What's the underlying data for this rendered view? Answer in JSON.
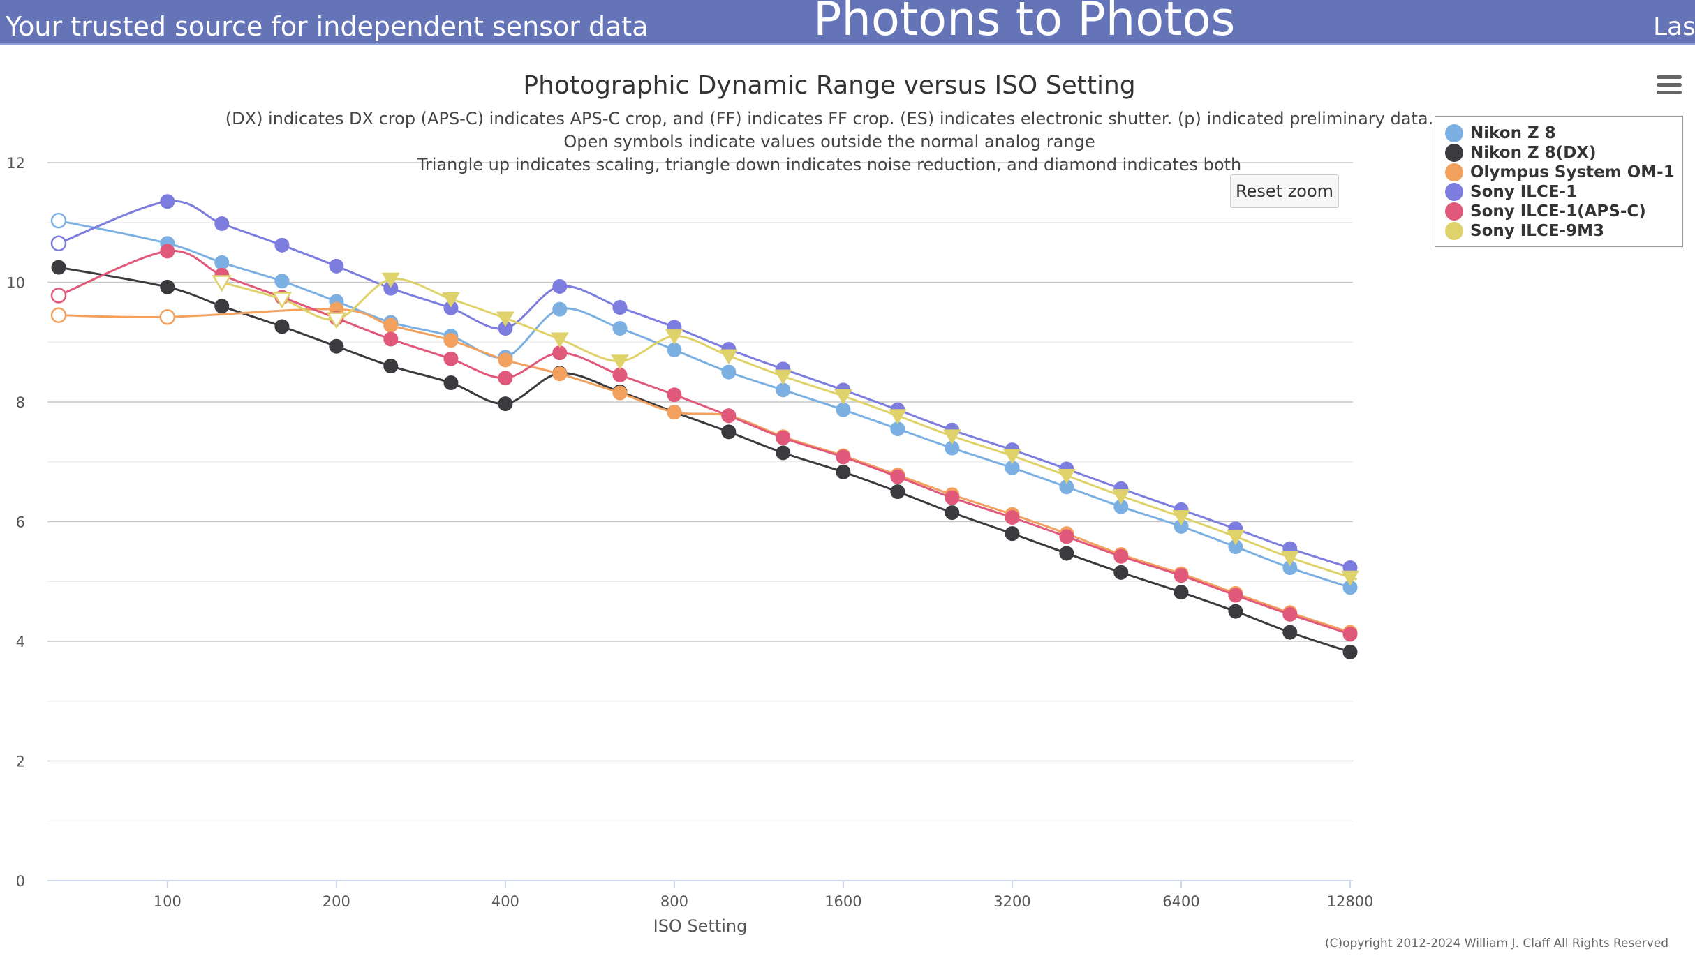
{
  "header": {
    "tagline": "Your trusted source for independent sensor data",
    "site_title": "Photons to Photos",
    "right_text": "Last"
  },
  "reset_zoom_label": "Reset zoom",
  "copyright": "(C)opyright 2012-2024 William J. Claff All Rights Reserved",
  "colors": {
    "banner": "#6574b7",
    "gridline": "#cccccc"
  },
  "chart_data": {
    "type": "line",
    "title": "Photographic Dynamic Range versus ISO Setting",
    "subtitle": [
      "(DX) indicates DX crop (APS-C) indicates APS-C crop, and (FF) indicates FF crop. (ES) indicates electronic shutter. (p) indicated preliminary data.",
      "Open symbols indicate values outside the normal analog range",
      "Triangle up indicates scaling, triangle down indicates noise reduction, and diamond indicates both"
    ],
    "xlabel": "ISO Setting",
    "ylabel": "",
    "x_scale": "log2",
    "xlim": [
      64,
      12800
    ],
    "ylim": [
      0,
      12
    ],
    "x_ticks": [
      100,
      200,
      400,
      800,
      1600,
      3200,
      6400,
      12800
    ],
    "y_ticks": [
      0,
      2,
      4,
      6,
      8,
      10,
      12
    ],
    "grid": true,
    "legend_position": "top-right",
    "series": [
      {
        "name": "Nikon Z 8",
        "color": "#7cb0e2",
        "marker": "circle",
        "x": [
          64,
          100,
          125,
          160,
          200,
          250,
          320,
          400,
          500,
          640,
          800,
          1000,
          1250,
          1600,
          2000,
          2500,
          3200,
          4000,
          5000,
          6400,
          8000,
          10000,
          12800
        ],
        "values": [
          11.03,
          10.65,
          10.33,
          10.02,
          9.68,
          9.33,
          9.1,
          8.75,
          9.55,
          9.23,
          8.87,
          8.5,
          8.2,
          7.87,
          7.55,
          7.23,
          6.9,
          6.58,
          6.25,
          5.92,
          5.58,
          5.23,
          4.9
        ],
        "open": [
          true,
          false,
          false,
          false,
          false,
          false,
          false,
          false,
          false,
          false,
          false,
          false,
          false,
          false,
          false,
          false,
          false,
          false,
          false,
          false,
          false,
          false,
          false
        ]
      },
      {
        "name": "Nikon Z 8(DX)",
        "color": "#3a3a3f",
        "marker": "circle",
        "x": [
          64,
          100,
          125,
          160,
          200,
          250,
          320,
          400,
          500,
          640,
          800,
          1000,
          1250,
          1600,
          2000,
          2500,
          3200,
          4000,
          5000,
          6400,
          8000,
          10000,
          12800
        ],
        "values": [
          10.25,
          9.92,
          9.6,
          9.26,
          8.93,
          8.6,
          8.32,
          7.97,
          8.48,
          8.17,
          7.83,
          7.5,
          7.15,
          6.83,
          6.5,
          6.15,
          5.8,
          5.47,
          5.15,
          4.82,
          4.5,
          4.15,
          3.82
        ],
        "open": [
          false,
          false,
          false,
          false,
          false,
          false,
          false,
          false,
          false,
          false,
          false,
          false,
          false,
          false,
          false,
          false,
          false,
          false,
          false,
          false,
          false,
          false,
          false
        ]
      },
      {
        "name": "Olympus System OM-1",
        "color": "#f2a15e",
        "marker": "circle",
        "x": [
          64,
          100,
          200,
          250,
          320,
          400,
          500,
          640,
          800,
          1000,
          1250,
          1600,
          2000,
          2500,
          3200,
          4000,
          5000,
          6400,
          8000,
          10000,
          12800
        ],
        "values": [
          9.45,
          9.42,
          9.55,
          9.28,
          9.03,
          8.7,
          8.47,
          8.15,
          7.83,
          7.77,
          7.42,
          7.1,
          6.78,
          6.45,
          6.12,
          5.8,
          5.45,
          5.13,
          4.8,
          4.48,
          4.15
        ],
        "open": [
          true,
          true,
          false,
          false,
          false,
          false,
          false,
          false,
          false,
          false,
          false,
          false,
          false,
          false,
          false,
          false,
          false,
          false,
          false,
          false,
          false
        ]
      },
      {
        "name": "Sony ILCE-1",
        "color": "#7d7ddf",
        "marker": "circle",
        "x": [
          64,
          100,
          125,
          160,
          200,
          250,
          320,
          400,
          500,
          640,
          800,
          1000,
          1250,
          1600,
          2000,
          2500,
          3200,
          4000,
          5000,
          6400,
          8000,
          10000,
          12800
        ],
        "values": [
          10.65,
          11.35,
          10.98,
          10.62,
          10.27,
          9.9,
          9.57,
          9.23,
          9.93,
          9.58,
          9.25,
          8.88,
          8.55,
          8.2,
          7.87,
          7.53,
          7.2,
          6.88,
          6.55,
          6.2,
          5.88,
          5.55,
          5.23
        ],
        "open": [
          true,
          false,
          false,
          false,
          false,
          false,
          false,
          false,
          false,
          false,
          false,
          false,
          false,
          false,
          false,
          false,
          false,
          false,
          false,
          false,
          false,
          false,
          false
        ]
      },
      {
        "name": "Sony ILCE-1(APS-C)",
        "color": "#e0587a",
        "marker": "circle",
        "x": [
          64,
          100,
          125,
          160,
          200,
          250,
          320,
          400,
          500,
          640,
          800,
          1000,
          1250,
          1600,
          2000,
          2500,
          3200,
          4000,
          5000,
          6400,
          8000,
          10000,
          12800
        ],
        "values": [
          9.78,
          10.52,
          10.12,
          9.75,
          9.4,
          9.05,
          8.72,
          8.4,
          8.82,
          8.45,
          8.12,
          7.77,
          7.4,
          7.08,
          6.75,
          6.4,
          6.07,
          5.75,
          5.42,
          5.1,
          4.77,
          4.45,
          4.12
        ],
        "open": [
          true,
          false,
          false,
          false,
          false,
          false,
          false,
          false,
          false,
          false,
          false,
          false,
          false,
          false,
          false,
          false,
          false,
          false,
          false,
          false,
          false,
          false,
          false
        ]
      },
      {
        "name": "Sony ILCE-9M3",
        "color": "#e0d26a",
        "marker": "triangle-down",
        "x": [
          125,
          160,
          200,
          250,
          320,
          400,
          500,
          640,
          800,
          1000,
          1250,
          1600,
          2000,
          2500,
          3200,
          4000,
          5000,
          6400,
          8000,
          10000,
          12800
        ],
        "values": [
          10.0,
          9.72,
          9.38,
          10.05,
          9.72,
          9.4,
          9.05,
          8.68,
          9.1,
          8.77,
          8.43,
          8.1,
          7.77,
          7.43,
          7.1,
          6.77,
          6.43,
          6.08,
          5.75,
          5.4,
          5.07
        ],
        "open": [
          true,
          true,
          true,
          false,
          false,
          false,
          false,
          false,
          false,
          false,
          false,
          false,
          false,
          false,
          false,
          false,
          false,
          false,
          false,
          false,
          false
        ]
      }
    ]
  }
}
